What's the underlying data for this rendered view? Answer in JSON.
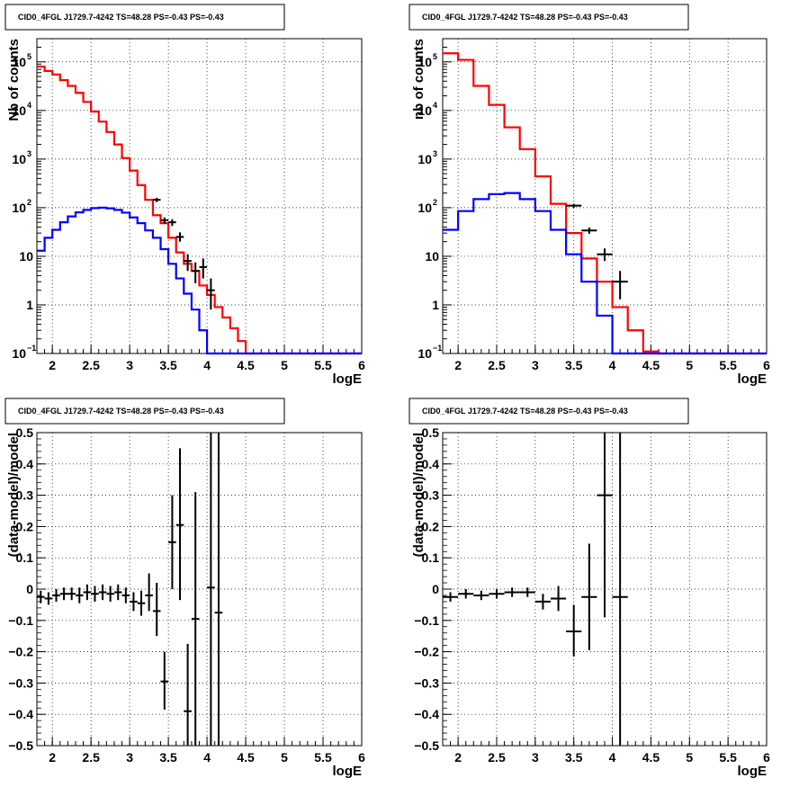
{
  "title": "CID0_4FGL J1729.7-4242 TS=48.28 PS=-0.43 PS=-0.43",
  "chart_data": [
    {
      "type": "histogram",
      "title": "CID0_4FGL J1729.7-4242 TS=48.28 PS=-0.43 PS=-0.43",
      "xlabel": "logE",
      "ylabel": "Nb of counts",
      "xlim": [
        1.8,
        6
      ],
      "ylim": [
        0.1,
        300000
      ],
      "yscale": "log",
      "grid": true,
      "xticks": [
        "2",
        "2.5",
        "3",
        "3.5",
        "4",
        "4.5",
        "5",
        "5.5",
        "6"
      ],
      "yticks": [
        {
          "base": "10",
          "exp": "−1",
          "value": 0.1
        },
        {
          "base": "1",
          "exp": "",
          "value": 1
        },
        {
          "base": "10",
          "exp": "",
          "value": 10
        },
        {
          "base": "10",
          "exp": "2",
          "value": 100
        },
        {
          "base": "10",
          "exp": "3",
          "value": 1000
        },
        {
          "base": "10",
          "exp": "4",
          "value": 10000
        },
        {
          "base": "10",
          "exp": "5",
          "value": 100000
        }
      ],
      "bin_edges": [
        1.8,
        1.9,
        2.0,
        2.1,
        2.2,
        2.3,
        2.4,
        2.5,
        2.6,
        2.7,
        2.8,
        2.9,
        3.0,
        3.1,
        3.2,
        3.3,
        3.4,
        3.5,
        3.6,
        3.7,
        3.8,
        3.9,
        4.0,
        4.1,
        4.2,
        4.3,
        4.4,
        4.5,
        4.6,
        4.7,
        4.8,
        4.9,
        5.0,
        5.1,
        5.2,
        5.3,
        5.4,
        5.5,
        5.6,
        5.7,
        5.8,
        5.9,
        6.0
      ],
      "series": [
        {
          "color": "#ff0000",
          "values": [
            80000,
            65000,
            55000,
            42000,
            32000,
            23000,
            15000,
            9500,
            5900,
            3600,
            2000,
            1050,
            580,
            290,
            145,
            70,
            48,
            24,
            12,
            7,
            5,
            2.5,
            1.6,
            0.9,
            0.55,
            0.33,
            0.18,
            0.1,
            0.08,
            0.08,
            0.08,
            0.08,
            0.08,
            0.08,
            0.08,
            0.08,
            0.08,
            0.08,
            0.08,
            0.08,
            0.08,
            0.08
          ]
        },
        {
          "color": "#0000ff",
          "values": [
            13,
            24,
            35,
            50,
            66,
            80,
            90,
            98,
            100,
            97,
            90,
            79,
            63,
            48,
            34,
            24,
            14,
            7,
            3.5,
            1.7,
            0.8,
            0.3,
            0.1,
            0.08,
            0.08,
            0.08,
            0.08,
            0.08,
            0.08,
            0.08,
            0.08,
            0.08,
            0.08,
            0.08,
            0.08,
            0.08,
            0.08,
            0.08,
            0.08,
            0.08,
            0.08,
            0.08
          ]
        }
      ],
      "points": [
        {
          "x": 3.35,
          "y": 145,
          "xerr": 0.05,
          "ylo": 130,
          "yhi": 160
        },
        {
          "x": 3.45,
          "y": 55,
          "xerr": 0.05,
          "ylo": 47,
          "yhi": 63
        },
        {
          "x": 3.55,
          "y": 50,
          "xerr": 0.05,
          "ylo": 42,
          "yhi": 58
        },
        {
          "x": 3.65,
          "y": 25,
          "xerr": 0.05,
          "ylo": 20,
          "yhi": 31
        },
        {
          "x": 3.75,
          "y": 8,
          "xerr": 0.05,
          "ylo": 5,
          "yhi": 11
        },
        {
          "x": 3.85,
          "y": 5,
          "xerr": 0.05,
          "ylo": 2.8,
          "yhi": 7.5
        },
        {
          "x": 3.95,
          "y": 6,
          "xerr": 0.05,
          "ylo": 3.5,
          "yhi": 9
        },
        {
          "x": 4.05,
          "y": 2,
          "xerr": 0.05,
          "ylo": 0.8,
          "yhi": 3.5
        }
      ]
    },
    {
      "type": "histogram",
      "title": "CID0_4FGL J1729.7-4242 TS=48.28 PS=-0.43 PS=-0.43",
      "xlabel": "logE",
      "ylabel": "nb of counts",
      "xlim": [
        1.8,
        6
      ],
      "ylim": [
        0.1,
        300000
      ],
      "yscale": "log",
      "grid": true,
      "xticks": [
        "2",
        "2.5",
        "3",
        "3.5",
        "4",
        "4.5",
        "5",
        "5.5",
        "6"
      ],
      "yticks": [
        {
          "base": "10",
          "exp": "−1",
          "value": 0.1
        },
        {
          "base": "1",
          "exp": "",
          "value": 1
        },
        {
          "base": "10",
          "exp": "",
          "value": 10
        },
        {
          "base": "10",
          "exp": "2",
          "value": 100
        },
        {
          "base": "10",
          "exp": "3",
          "value": 1000
        },
        {
          "base": "10",
          "exp": "4",
          "value": 10000
        },
        {
          "base": "10",
          "exp": "5",
          "value": 100000
        }
      ],
      "bin_edges": [
        1.8,
        2.0,
        2.2,
        2.4,
        2.6,
        2.8,
        3.0,
        3.2,
        3.4,
        3.6,
        3.8,
        4.0,
        4.2,
        4.4,
        4.6,
        4.8,
        5.0,
        5.2,
        5.4,
        5.6,
        5.8,
        6.0
      ],
      "series": [
        {
          "color": "#ff0000",
          "values": [
            150000,
            110000,
            32000,
            13000,
            4500,
            1600,
            440,
            120,
            30,
            9,
            3,
            0.9,
            0.3,
            0.11,
            0.08,
            0.08,
            0.08,
            0.08,
            0.08,
            0.08,
            0.08
          ]
        },
        {
          "color": "#0000ff",
          "values": [
            35,
            85,
            150,
            190,
            200,
            150,
            85,
            35,
            11,
            3,
            0.6,
            0.08,
            0.08,
            0.08,
            0.08,
            0.08,
            0.08,
            0.08,
            0.08,
            0.08,
            0.08
          ]
        }
      ],
      "points": [
        {
          "x": 3.5,
          "y": 110,
          "xerr": 0.1,
          "ylo": 100,
          "yhi": 120
        },
        {
          "x": 3.7,
          "y": 34,
          "xerr": 0.1,
          "ylo": 29,
          "yhi": 39
        },
        {
          "x": 3.9,
          "y": 11,
          "xerr": 0.1,
          "ylo": 8,
          "yhi": 14.5
        },
        {
          "x": 4.1,
          "y": 3,
          "xerr": 0.1,
          "ylo": 1.3,
          "yhi": 5
        }
      ]
    },
    {
      "type": "scatter",
      "title": "CID0_4FGL J1729.7-4242 TS=48.28 PS=-0.43 PS=-0.43",
      "xlabel": "logE",
      "ylabel": "(data-model)/model",
      "xlim": [
        1.8,
        6
      ],
      "ylim": [
        -0.5,
        0.5
      ],
      "grid": true,
      "xticks": [
        "2",
        "2.5",
        "3",
        "3.5",
        "4",
        "4.5",
        "5",
        "5.5",
        "6"
      ],
      "yticks": [
        "−0.5",
        "−0.4",
        "−0.3",
        "−0.2",
        "−0.1",
        "0",
        "0.1",
        "0.2",
        "0.3",
        "0.4",
        "0.5"
      ],
      "points": [
        {
          "x": 1.85,
          "y": -0.025,
          "xerr": 0.05,
          "ylo": -0.045,
          "yhi": -0.005
        },
        {
          "x": 1.95,
          "y": -0.03,
          "xerr": 0.05,
          "ylo": -0.05,
          "yhi": -0.01
        },
        {
          "x": 2.05,
          "y": -0.02,
          "xerr": 0.05,
          "ylo": -0.04,
          "yhi": 0.0
        },
        {
          "x": 2.15,
          "y": -0.015,
          "xerr": 0.05,
          "ylo": -0.035,
          "yhi": 0.005
        },
        {
          "x": 2.25,
          "y": -0.015,
          "xerr": 0.05,
          "ylo": -0.035,
          "yhi": 0.005
        },
        {
          "x": 2.35,
          "y": -0.02,
          "xerr": 0.05,
          "ylo": -0.045,
          "yhi": 0.005
        },
        {
          "x": 2.45,
          "y": -0.01,
          "xerr": 0.05,
          "ylo": -0.035,
          "yhi": 0.015
        },
        {
          "x": 2.55,
          "y": -0.015,
          "xerr": 0.05,
          "ylo": -0.04,
          "yhi": 0.01
        },
        {
          "x": 2.65,
          "y": -0.01,
          "xerr": 0.05,
          "ylo": -0.035,
          "yhi": 0.015
        },
        {
          "x": 2.75,
          "y": -0.015,
          "xerr": 0.05,
          "ylo": -0.04,
          "yhi": 0.01
        },
        {
          "x": 2.85,
          "y": -0.01,
          "xerr": 0.05,
          "ylo": -0.035,
          "yhi": 0.015
        },
        {
          "x": 2.95,
          "y": -0.02,
          "xerr": 0.05,
          "ylo": -0.045,
          "yhi": 0.005
        },
        {
          "x": 3.05,
          "y": -0.04,
          "xerr": 0.05,
          "ylo": -0.07,
          "yhi": -0.01
        },
        {
          "x": 3.15,
          "y": -0.045,
          "xerr": 0.05,
          "ylo": -0.085,
          "yhi": -0.005
        },
        {
          "x": 3.25,
          "y": -0.02,
          "xerr": 0.05,
          "ylo": -0.07,
          "yhi": 0.05
        },
        {
          "x": 3.35,
          "y": -0.07,
          "xerr": 0.05,
          "ylo": -0.15,
          "yhi": 0.02
        },
        {
          "x": 3.45,
          "y": -0.295,
          "xerr": 0.05,
          "ylo": -0.385,
          "yhi": -0.2
        },
        {
          "x": 3.55,
          "y": 0.15,
          "xerr": 0.05,
          "ylo": 0.0,
          "yhi": 0.3
        },
        {
          "x": 3.65,
          "y": 0.205,
          "xerr": 0.05,
          "ylo": -0.035,
          "yhi": 0.45
        },
        {
          "x": 3.75,
          "y": -0.39,
          "xerr": 0.05,
          "ylo": -0.5,
          "yhi": -0.175
        },
        {
          "x": 3.85,
          "y": -0.095,
          "xerr": 0.05,
          "ylo": -0.5,
          "yhi": 0.31
        },
        {
          "x": 4.05,
          "y": 0.005,
          "xerr": 0.05,
          "ylo": -0.5,
          "yhi": 0.5
        },
        {
          "x": 4.15,
          "y": -0.075,
          "xerr": 0.05,
          "ylo": -0.5,
          "yhi": 0.5
        }
      ]
    },
    {
      "type": "scatter",
      "title": "CID0_4FGL J1729.7-4242 TS=48.28 PS=-0.43 PS=-0.43",
      "xlabel": "logE",
      "ylabel": "(data-model)/model",
      "xlim": [
        1.8,
        6
      ],
      "ylim": [
        -0.5,
        0.5
      ],
      "grid": true,
      "xticks": [
        "2",
        "2.5",
        "3",
        "3.5",
        "4",
        "4.5",
        "5",
        "5.5",
        "6"
      ],
      "yticks": [
        "−0.5",
        "−0.4",
        "−0.3",
        "−0.2",
        "−0.1",
        "0",
        "0.1",
        "0.2",
        "0.3",
        "0.4",
        "0.5"
      ],
      "points": [
        {
          "x": 1.9,
          "y": -0.025,
          "xerr": 0.1,
          "ylo": -0.04,
          "yhi": -0.01
        },
        {
          "x": 2.1,
          "y": -0.015,
          "xerr": 0.1,
          "ylo": -0.03,
          "yhi": 0.0
        },
        {
          "x": 2.3,
          "y": -0.02,
          "xerr": 0.1,
          "ylo": -0.035,
          "yhi": -0.005
        },
        {
          "x": 2.5,
          "y": -0.015,
          "xerr": 0.1,
          "ylo": -0.03,
          "yhi": 0.0
        },
        {
          "x": 2.7,
          "y": -0.01,
          "xerr": 0.1,
          "ylo": -0.025,
          "yhi": 0.005
        },
        {
          "x": 2.9,
          "y": -0.01,
          "xerr": 0.1,
          "ylo": -0.025,
          "yhi": 0.005
        },
        {
          "x": 3.1,
          "y": -0.04,
          "xerr": 0.1,
          "ylo": -0.065,
          "yhi": -0.015
        },
        {
          "x": 3.3,
          "y": -0.03,
          "xerr": 0.1,
          "ylo": -0.07,
          "yhi": 0.01
        },
        {
          "x": 3.5,
          "y": -0.135,
          "xerr": 0.1,
          "ylo": -0.215,
          "yhi": -0.05
        },
        {
          "x": 3.7,
          "y": -0.025,
          "xerr": 0.1,
          "ylo": -0.195,
          "yhi": 0.145
        },
        {
          "x": 3.9,
          "y": 0.3,
          "xerr": 0.1,
          "ylo": -0.09,
          "yhi": 0.5
        },
        {
          "x": 4.1,
          "y": -0.025,
          "xerr": 0.1,
          "ylo": -0.5,
          "yhi": 0.5
        }
      ]
    }
  ]
}
